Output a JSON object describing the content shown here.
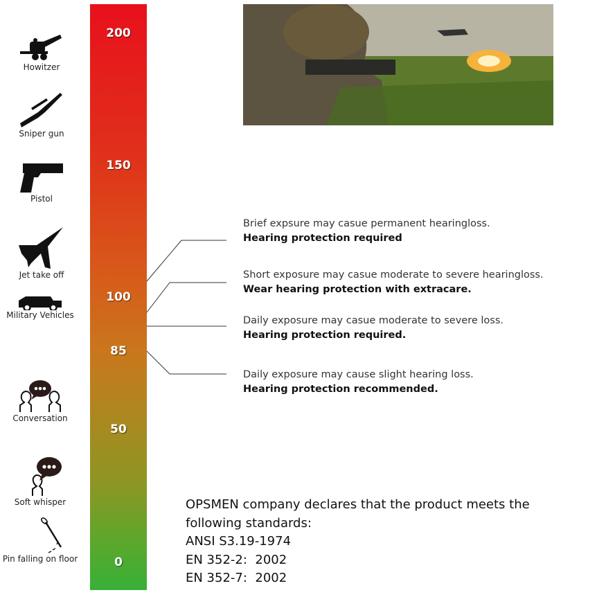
{
  "scale": {
    "ticks": [
      "200",
      "150",
      "100",
      "85",
      "50",
      "0"
    ],
    "colors": {
      "top": "#e8101c",
      "middle": "#c8781c",
      "bottom": "#38b038"
    }
  },
  "sources": [
    {
      "label": "Howitzer",
      "icon": "howitzer-icon"
    },
    {
      "label": "Sniper gun",
      "icon": "sniper-rifle-icon"
    },
    {
      "label": "Pistol",
      "icon": "pistol-icon"
    },
    {
      "label": "Jet take off",
      "icon": "jet-icon"
    },
    {
      "label": "Military Vehicles",
      "icon": "military-vehicle-icon"
    },
    {
      "label": "Conversation",
      "icon": "conversation-icon"
    },
    {
      "label": "Soft whisper",
      "icon": "whisper-icon"
    },
    {
      "label": "Pin falling on floor",
      "icon": "pin-icon"
    }
  ],
  "notes": [
    {
      "text": "Brief expsure may casue permanent hearingloss.",
      "bold": "Hearing protection required"
    },
    {
      "text": "Short exposure may casue moderate to severe hearingloss.",
      "bold": "Wear hearing protection with extracare."
    },
    {
      "text": "Daily exposure may casue moderate to severe loss.",
      "bold": "Hearing protection required."
    },
    {
      "text": "Daily exposure may cause slight hearing loss.",
      "bold": "Hearing protection recommended."
    }
  ],
  "declaration": {
    "line1": "OPSMEN company declares that the product meets the",
    "line2": "following standards:",
    "standards": [
      "ANSI S3.19-1974",
      "EN 352-2:  2002",
      "EN 352-7:  2002"
    ]
  }
}
